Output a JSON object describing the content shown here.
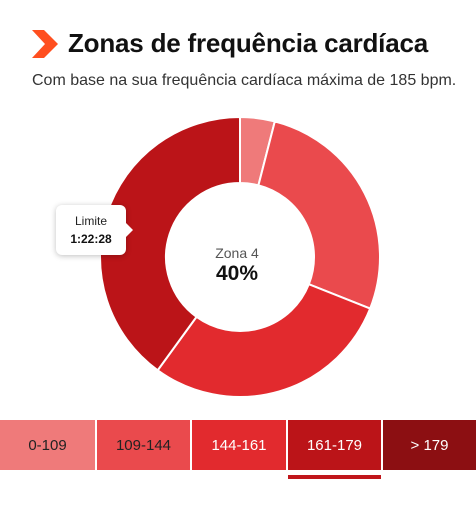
{
  "header": {
    "title": "Zonas de frequência cardíaca",
    "subtitle": "Com base na sua frequência cardíaca máxima de 185 bpm."
  },
  "brand": {
    "icon": "chevron-arrow-icon",
    "color": "#ff4f1f"
  },
  "chart_data": {
    "type": "pie",
    "donut": true,
    "categories": [
      "0-109",
      "109-144",
      "144-161",
      "161-179",
      "> 179"
    ],
    "values": [
      4,
      27,
      29,
      40,
      0
    ],
    "unit": "%",
    "colors": [
      "#ef7a7a",
      "#ea4a4d",
      "#e22a2e",
      "#bb1418",
      "#8c0f12"
    ],
    "center": {
      "label": "Zona 4",
      "value": "40%"
    },
    "tooltip": {
      "label": "Limite",
      "value": "1:22:28"
    }
  },
  "zones": {
    "items": [
      {
        "label": "0-109"
      },
      {
        "label": "109-144"
      },
      {
        "label": "144-161"
      },
      {
        "label": "161-179"
      },
      {
        "label": "> 179"
      }
    ],
    "selected_index": 3
  }
}
